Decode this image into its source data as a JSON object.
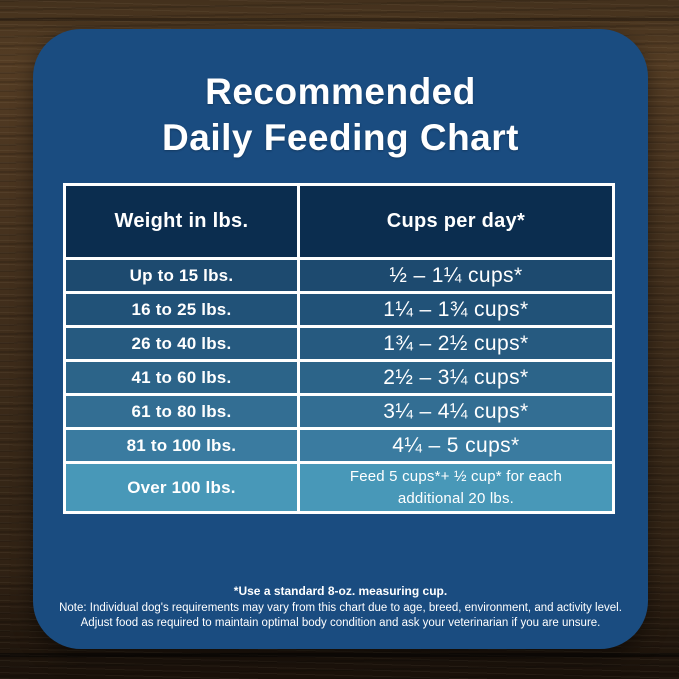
{
  "colors": {
    "card_bg": "#1a4c80",
    "header_bg": "#0b2d4f",
    "table_border": "#ffffff",
    "text": "#ffffff",
    "wood_base": "#3a2a1b"
  },
  "title": {
    "line1": "Recommended",
    "line2": "Daily Feeding Chart"
  },
  "chart_data": {
    "type": "table",
    "title": "Recommended Daily Feeding Chart",
    "columns": [
      "Weight in lbs.",
      "Cups per day*"
    ],
    "rows": [
      {
        "weight": "Up to 15 lbs.",
        "cups": "½ – 1¼ cups*",
        "bg": "#1d4a6f"
      },
      {
        "weight": "16 to 25 lbs.",
        "cups": "1¼ – 1¾ cups*",
        "bg": "#215278"
      },
      {
        "weight": "26 to 40 lbs.",
        "cups": "1¾ – 2½ cups*",
        "bg": "#265a80"
      },
      {
        "weight": "41 to 60 lbs.",
        "cups": "2½ – 3¼ cups*",
        "bg": "#2c6489"
      },
      {
        "weight": "61 to 80 lbs.",
        "cups": "3¼ – 4¼ cups*",
        "bg": "#336e93"
      },
      {
        "weight": "81 to 100 lbs.",
        "cups": "4¼ – 5 cups*",
        "bg": "#3a7ba0"
      },
      {
        "weight": "Over 100 lbs.",
        "cups": "Feed 5 cups*+ ½ cup* for each additional 20 lbs.",
        "bg": "#4898b8"
      }
    ],
    "footnotes": [
      "*Use a standard 8-oz. measuring cup.",
      "Note: Individual dog's requirements may vary from this chart due to age, breed, environment, and activity level.",
      "Adjust food as required to maintain optimal body condition and ask your veterinarian if you are unsure."
    ]
  }
}
